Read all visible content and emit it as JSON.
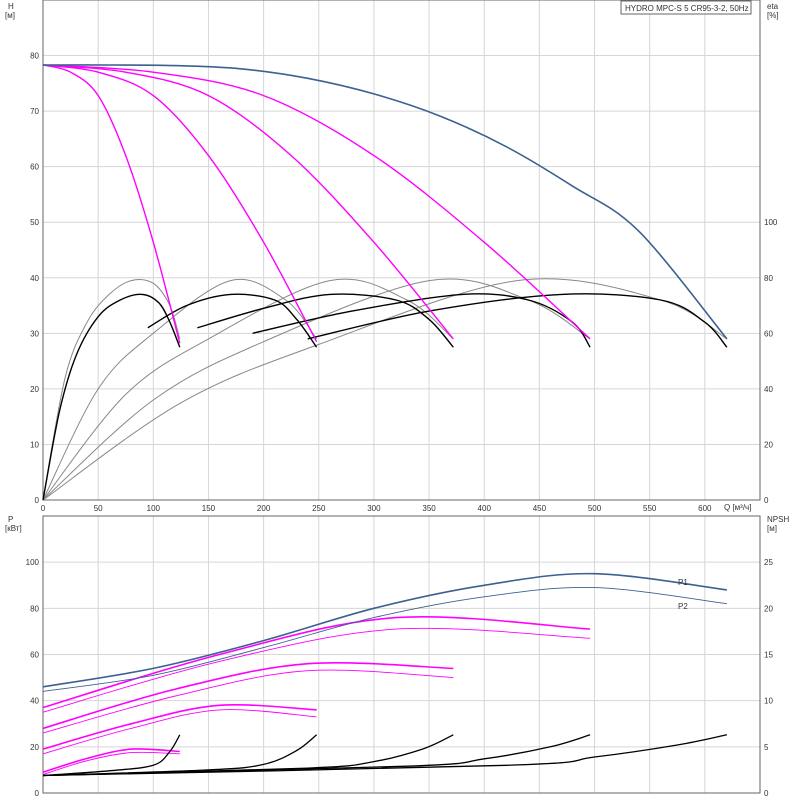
{
  "legend": "HYDRO MPC-S 5 CR95-3-2, 50Hz",
  "colors": {
    "max_curve": "#3a6190",
    "partial_curve": "#ff00ff",
    "eta_curve": "#000000",
    "eta_thin": "#888888",
    "npsh_curve": "#000000"
  },
  "chart_data": [
    {
      "id": "top",
      "type": "line",
      "y_left_label_1": "H",
      "y_left_label_2": "[м]",
      "y_right_label_1": "eta",
      "y_right_label_2": "[%]",
      "x_label": "Q [м³/ч]",
      "xlim": [
        0,
        650
      ],
      "ylim_left": [
        0,
        90
      ],
      "ylim_right": [
        0,
        180
      ],
      "x_ticks": [
        0,
        50,
        100,
        150,
        200,
        250,
        300,
        350,
        400,
        450,
        500,
        550,
        600
      ],
      "y_left_ticks": [
        0,
        10,
        20,
        30,
        40,
        50,
        60,
        70,
        80
      ],
      "y_right_ticks": [
        0,
        20,
        40,
        60,
        80,
        100
      ],
      "head_max": {
        "x": [
          0,
          60,
          120,
          180,
          240,
          300,
          360,
          420,
          480,
          540,
          620
        ],
        "y": [
          78.3,
          78.3,
          78.2,
          77.6,
          75.9,
          73.1,
          69.1,
          63.6,
          56.5,
          48.4,
          29.0
        ]
      },
      "head_partial": [
        {
          "x": [
            0,
            25,
            50,
            75,
            100,
            124
          ],
          "y": [
            78.3,
            77.0,
            72.8,
            62.0,
            46.4,
            28.2
          ]
        },
        {
          "x": [
            0,
            50,
            100,
            150,
            200,
            248
          ],
          "y": [
            78.3,
            77.0,
            72.8,
            62.0,
            46.4,
            28.5
          ]
        },
        {
          "x": [
            0,
            75,
            150,
            225,
            300,
            372
          ],
          "y": [
            78.3,
            77.0,
            72.8,
            62.0,
            46.4,
            29.0
          ]
        },
        {
          "x": [
            0,
            100,
            200,
            300,
            400,
            496
          ],
          "y": [
            78.3,
            77.0,
            72.8,
            62.0,
            46.4,
            29.0
          ]
        }
      ],
      "eta_dark": [
        {
          "x": [
            0,
            15,
            30,
            50,
            70,
            90,
            105,
            115,
            124
          ],
          "y": [
            0,
            32,
            52,
            66,
            72,
            74,
            71,
            64,
            55
          ]
        },
        {
          "x": [
            95,
            130,
            170,
            210,
            230,
            248
          ],
          "y": [
            62,
            70,
            74,
            72,
            65,
            55
          ]
        },
        {
          "x": [
            140,
            200,
            260,
            320,
            350,
            372
          ],
          "y": [
            62,
            69,
            74,
            72,
            65,
            55
          ]
        },
        {
          "x": [
            190,
            280,
            380,
            440,
            480,
            496
          ],
          "y": [
            60,
            68,
            74,
            72,
            64,
            55
          ]
        },
        {
          "x": [
            240,
            350,
            470,
            560,
            600,
            620
          ],
          "y": [
            58,
            68,
            74,
            72,
            64,
            55
          ]
        }
      ],
      "eta_thin": [
        {
          "x": [
            0,
            20,
            40,
            60,
            80,
            100,
            115,
            124
          ],
          "y": [
            0,
            44,
            64,
            74,
            79,
            78,
            70,
            58
          ]
        },
        {
          "x": [
            0,
            50,
            100,
            170,
            220,
            248
          ],
          "y": [
            0,
            40,
            60,
            79,
            72,
            58
          ]
        },
        {
          "x": [
            0,
            75,
            150,
            260,
            330,
            372
          ],
          "y": [
            0,
            38,
            58,
            79,
            72,
            58
          ]
        },
        {
          "x": [
            0,
            100,
            200,
            350,
            440,
            496
          ],
          "y": [
            0,
            36,
            57,
            79,
            72,
            58
          ]
        },
        {
          "x": [
            0,
            125,
            250,
            430,
            560,
            620
          ],
          "y": [
            0,
            35,
            56,
            79,
            72,
            58
          ]
        }
      ]
    },
    {
      "id": "bottom",
      "type": "line",
      "y_left_label_1": "P",
      "y_left_label_2": "[кВт]",
      "y_right_label_1": "NPSH",
      "y_right_label_2": "[м]",
      "xlim": [
        0,
        650
      ],
      "ylim_left": [
        0,
        120
      ],
      "ylim_right": [
        0,
        30
      ],
      "y_left_ticks": [
        0,
        20,
        40,
        60,
        80,
        100
      ],
      "y_right_ticks": [
        0,
        5,
        10,
        15,
        20,
        25
      ],
      "series_labels": [
        "P1",
        "P2"
      ],
      "p1_max": {
        "x": [
          0,
          100,
          200,
          300,
          400,
          500,
          620
        ],
        "y": [
          46,
          54,
          66,
          80,
          90,
          95,
          88
        ]
      },
      "p2_max": {
        "x": [
          0,
          100,
          200,
          300,
          400,
          500,
          620
        ],
        "y": [
          44,
          51,
          63,
          76,
          85,
          89,
          82
        ]
      },
      "p1_partial": [
        {
          "x": [
            0,
            40,
            80,
            124
          ],
          "y": [
            9,
            15,
            19,
            18
          ]
        },
        {
          "x": [
            0,
            80,
            160,
            248
          ],
          "y": [
            19,
            30,
            38,
            36
          ]
        },
        {
          "x": [
            0,
            120,
            240,
            372
          ],
          "y": [
            28,
            45,
            56,
            54
          ]
        },
        {
          "x": [
            0,
            160,
            320,
            496
          ],
          "y": [
            37,
            60,
            76,
            71
          ]
        }
      ],
      "p2_partial": [
        {
          "x": [
            0,
            40,
            80,
            124
          ],
          "y": [
            8,
            14,
            17.5,
            17
          ]
        },
        {
          "x": [
            0,
            80,
            160,
            248
          ],
          "y": [
            17,
            28,
            36,
            33
          ]
        },
        {
          "x": [
            0,
            120,
            240,
            372
          ],
          "y": [
            26,
            42,
            53,
            50
          ]
        },
        {
          "x": [
            0,
            160,
            320,
            496
          ],
          "y": [
            35,
            57,
            71,
            67
          ]
        }
      ],
      "npsh": [
        {
          "x": [
            0,
            60,
            100,
            115,
            124
          ],
          "y": [
            1.9,
            2.4,
            3.0,
            4.5,
            6.3
          ]
        },
        {
          "x": [
            0,
            150,
            200,
            230,
            248
          ],
          "y": [
            1.9,
            2.5,
            3.1,
            4.6,
            6.3
          ]
        },
        {
          "x": [
            0,
            240,
            300,
            345,
            372
          ],
          "y": [
            1.9,
            2.7,
            3.4,
            4.8,
            6.3
          ]
        },
        {
          "x": [
            0,
            330,
            400,
            460,
            496
          ],
          "y": [
            1.9,
            2.9,
            3.7,
            5.0,
            6.3
          ]
        },
        {
          "x": [
            0,
            420,
            500,
            575,
            620
          ],
          "y": [
            1.9,
            3.0,
            3.9,
            5.2,
            6.3
          ]
        }
      ]
    }
  ]
}
